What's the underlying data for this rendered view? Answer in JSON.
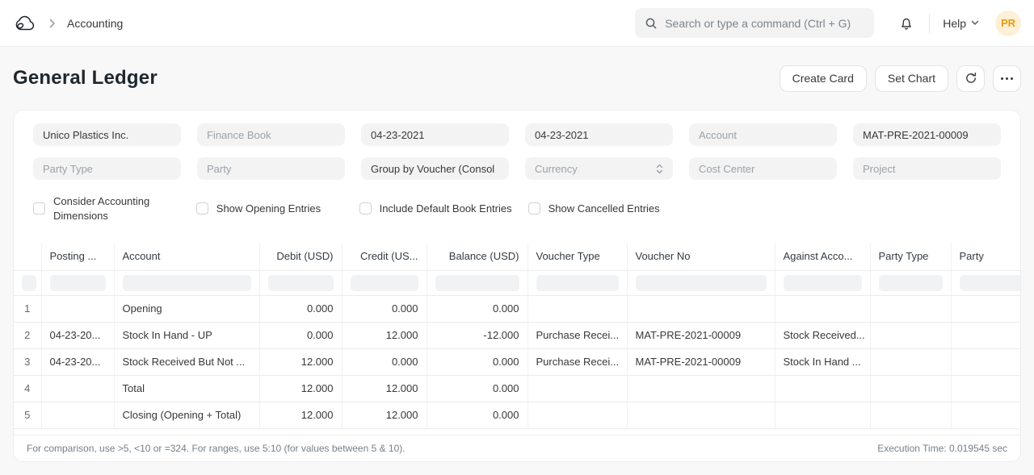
{
  "navbar": {
    "breadcrumb": "Accounting",
    "search_placeholder": "Search or type a command (Ctrl + G)",
    "help_label": "Help",
    "avatar_initials": "PR",
    "avatar_bg": "#fdf0d7",
    "avatar_color": "#e79913"
  },
  "page_header": {
    "title": "General Ledger",
    "create_card_label": "Create Card",
    "set_chart_label": "Set Chart"
  },
  "filters": {
    "row1": [
      {
        "name": "company",
        "value": "Unico Plastics Inc.",
        "filled": true
      },
      {
        "name": "finance-book",
        "value": "Finance Book",
        "filled": false
      },
      {
        "name": "from-date",
        "value": "04-23-2021",
        "filled": true
      },
      {
        "name": "to-date",
        "value": "04-23-2021",
        "filled": true
      },
      {
        "name": "account",
        "value": "Account",
        "filled": false
      },
      {
        "name": "voucher-no",
        "value": "MAT-PRE-2021-00009",
        "filled": true
      }
    ],
    "row2": [
      {
        "name": "party-type",
        "value": "Party Type",
        "filled": false
      },
      {
        "name": "party",
        "value": "Party",
        "filled": false
      },
      {
        "name": "group-by",
        "value": "Group by Voucher (Consol",
        "filled": true
      },
      {
        "name": "currency",
        "value": "Currency",
        "filled": false,
        "select": true
      },
      {
        "name": "cost-center",
        "value": "Cost Center",
        "filled": false
      },
      {
        "name": "project",
        "value": "Project",
        "filled": false
      }
    ],
    "checkboxes": [
      {
        "label": "Consider Accounting Dimensions",
        "checked": false,
        "wrap": true
      },
      {
        "label": "Show Opening Entries",
        "checked": false,
        "wrap": false
      },
      {
        "label": "Include Default Book Entries",
        "checked": false,
        "wrap": false
      },
      {
        "label": "Show Cancelled Entries",
        "checked": false,
        "wrap": false
      }
    ]
  },
  "table": {
    "columns": [
      "",
      "Posting ...",
      "Account",
      "Debit (USD)",
      "Credit (US...",
      "Balance (USD)",
      "Voucher Type",
      "Voucher No",
      "Against Acco...",
      "Party Type",
      "Party"
    ],
    "rows": [
      {
        "idx": "1",
        "cells": [
          "",
          "Opening",
          "0.000",
          "0.000",
          "0.000",
          "",
          "",
          "",
          "",
          ""
        ]
      },
      {
        "idx": "2",
        "cells": [
          "04-23-20...",
          "Stock In Hand - UP",
          "0.000",
          "12.000",
          "-12.000",
          "Purchase Recei...",
          "MAT-PRE-2021-00009",
          "Stock Received...",
          "",
          ""
        ]
      },
      {
        "idx": "3",
        "cells": [
          "04-23-20...",
          "Stock Received But Not ...",
          "12.000",
          "0.000",
          "0.000",
          "Purchase Recei...",
          "MAT-PRE-2021-00009",
          "Stock In Hand ...",
          "",
          ""
        ]
      },
      {
        "idx": "4",
        "cells": [
          "",
          "Total",
          "12.000",
          "12.000",
          "0.000",
          "",
          "",
          "",
          "",
          ""
        ]
      },
      {
        "idx": "5",
        "cells": [
          "",
          "Closing (Opening + Total)",
          "12.000",
          "12.000",
          "0.000",
          "",
          "",
          "",
          "",
          ""
        ]
      }
    ]
  },
  "footer": {
    "hint": "For comparison, use >5, <10 or =324. For ranges, use 5:10 (for values between 5 & 10).",
    "execution_time": "Execution Time: 0.019545 sec"
  }
}
